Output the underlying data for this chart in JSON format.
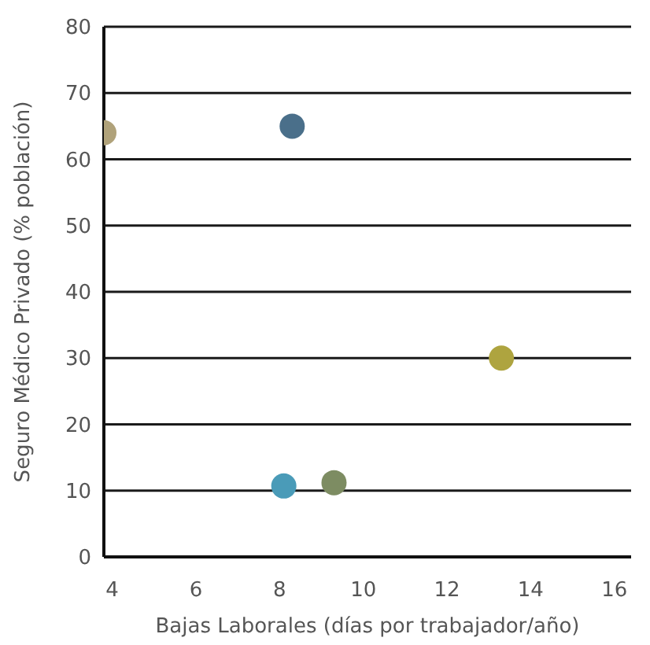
{
  "chart_data": {
    "type": "scatter",
    "xlabel": "Bajas Laborales (días por trabajador/año)",
    "ylabel": "Seguro Médico Privado (% población)",
    "x": [
      3.8,
      8.3,
      13.3,
      8.1,
      9.3
    ],
    "series": [
      {
        "values": [
          64,
          65,
          30,
          10.7,
          11.2
        ],
        "colors": [
          "#b0a27a",
          "#4a6f8a",
          "#aea43f",
          "#4a9bb8",
          "#7d8c62"
        ]
      }
    ],
    "xlim": [
      3.8,
      16.4
    ],
    "xticks": [
      4,
      6,
      8,
      10,
      12,
      14,
      16
    ],
    "ylim": [
      0,
      80
    ],
    "yticks": [
      0,
      10,
      20,
      30,
      40,
      50,
      60,
      70,
      80
    ],
    "grid": "y",
    "marker": "circle",
    "legend": false
  }
}
